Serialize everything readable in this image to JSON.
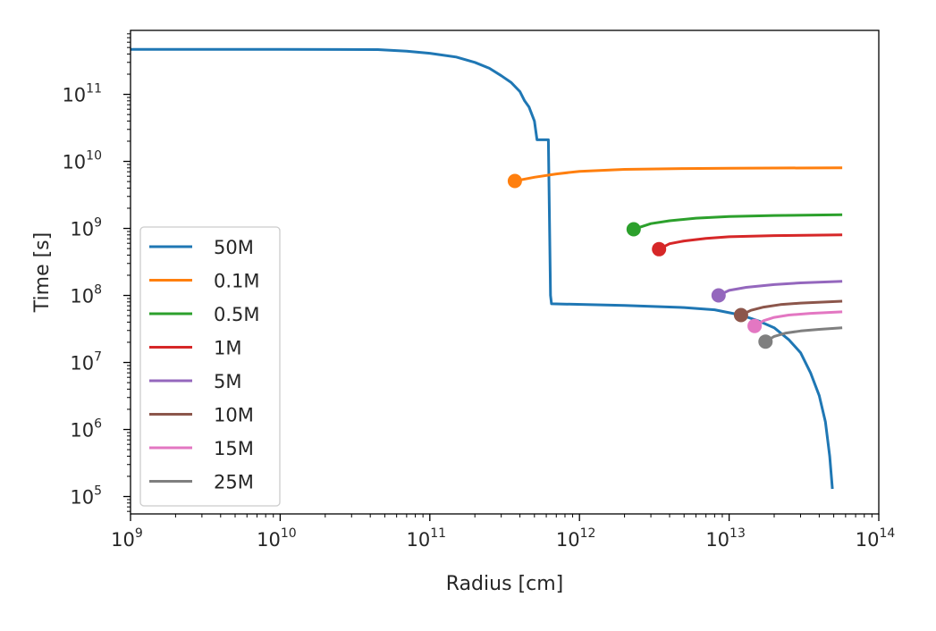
{
  "chart_data": {
    "type": "line",
    "title": "",
    "xlabel": "Radius [cm]",
    "ylabel": "Time [s]",
    "x_scale": "log",
    "y_scale": "log",
    "xlim": [
      1000000000.0,
      100000000000000.0
    ],
    "ylim": [
      55000.0,
      900000000000.0
    ],
    "grid": false,
    "legend_position": "lower-left",
    "x_ticks": [
      {
        "value": 1000000000.0,
        "base": "10",
        "exp": "9"
      },
      {
        "value": 10000000000.0,
        "base": "10",
        "exp": "10"
      },
      {
        "value": 100000000000.0,
        "base": "10",
        "exp": "11"
      },
      {
        "value": 1000000000000.0,
        "base": "10",
        "exp": "12"
      },
      {
        "value": 10000000000000.0,
        "base": "10",
        "exp": "13"
      },
      {
        "value": 100000000000000.0,
        "base": "10",
        "exp": "14"
      }
    ],
    "y_ticks": [
      {
        "value": 100000.0,
        "base": "10",
        "exp": "5"
      },
      {
        "value": 1000000.0,
        "base": "10",
        "exp": "6"
      },
      {
        "value": 10000000.0,
        "base": "10",
        "exp": "7"
      },
      {
        "value": 100000000.0,
        "base": "10",
        "exp": "8"
      },
      {
        "value": 1000000000.0,
        "base": "10",
        "exp": "9"
      },
      {
        "value": 10000000000.0,
        "base": "10",
        "exp": "10"
      },
      {
        "value": 100000000000.0,
        "base": "10",
        "exp": "11"
      }
    ],
    "series": [
      {
        "name": "50M",
        "color": "#1f77b4",
        "points": [
          [
            1000000000.0,
            470000000000.0
          ],
          [
            10000000000.0,
            470000000000.0
          ],
          [
            45000000000.0,
            465000000000.0
          ],
          [
            70000000000.0,
            440000000000.0
          ],
          [
            100000000000.0,
            410000000000.0
          ],
          [
            150000000000.0,
            360000000000.0
          ],
          [
            200000000000.0,
            300000000000.0
          ],
          [
            250000000000.0,
            245000000000.0
          ],
          [
            300000000000.0,
            190000000000.0
          ],
          [
            350000000000.0,
            150000000000.0
          ],
          [
            400000000000.0,
            110000000000.0
          ],
          [
            430000000000.0,
            80000000000.0
          ],
          [
            460000000000.0,
            65000000000.0
          ],
          [
            500000000000.0,
            40000000000.0
          ],
          [
            520000000000.0,
            21000000000.0
          ],
          [
            620000000000.0,
            21000000000.0
          ],
          [
            640000000000.0,
            100000000.0
          ],
          [
            650000000000.0,
            75000000.0
          ],
          [
            2000000000000.0,
            71000000.0
          ],
          [
            5000000000000.0,
            66000000.0
          ],
          [
            8000000000000.0,
            61000000.0
          ],
          [
            12000000000000.0,
            51000000.0
          ],
          [
            16000000000000.0,
            41000000.0
          ],
          [
            20000000000000.0,
            33000000.0
          ],
          [
            25000000000000.0,
            22000000.0
          ],
          [
            30000000000000.0,
            14000000.0
          ],
          [
            35000000000000.0,
            7000000.0
          ],
          [
            40000000000000.0,
            3200000.0
          ],
          [
            44000000000000.0,
            1300000.0
          ],
          [
            47000000000000.0,
            400000.0
          ],
          [
            49000000000000.0,
            130000.0
          ]
        ]
      },
      {
        "name": "0.1M",
        "color": "#ff7f0e",
        "start": [
          370000000000.0,
          5100000000.0
        ],
        "end": [
          57000000000000.0,
          8000000000.0
        ],
        "x": [
          370000000000.0,
          500000000000.0,
          700000000000.0,
          1000000000000.0,
          2000000000000.0,
          5000000000000.0,
          10000000000000.0,
          20000000000000.0,
          57000000000000.0
        ],
        "y": [
          5100000000.0,
          5800000000.0,
          6500000000.0,
          7100000000.0,
          7600000000.0,
          7800000000.0,
          7900000000.0,
          7950000000.0,
          8000000000.0
        ]
      },
      {
        "name": "0.5M",
        "color": "#2ca02c",
        "start": [
          2300000000000.0,
          970000000.0
        ],
        "end": [
          57000000000000.0,
          1600000000.0
        ],
        "x": [
          2300000000000.0,
          3000000000000.0,
          4000000000000.0,
          6000000000000.0,
          10000000000000.0,
          20000000000000.0,
          57000000000000.0
        ],
        "y": [
          970000000.0,
          1180000000.0,
          1300000000.0,
          1420000000.0,
          1500000000.0,
          1560000000.0,
          1600000000.0
        ]
      },
      {
        "name": "1M",
        "color": "#d62728",
        "start": [
          3400000000000.0,
          490000000.0
        ],
        "end": [
          57000000000000.0,
          800000000.0
        ],
        "x": [
          3400000000000.0,
          4000000000000.0,
          5000000000000.0,
          7000000000000.0,
          10000000000000.0,
          20000000000000.0,
          57000000000000.0
        ],
        "y": [
          490000000.0,
          590000000.0,
          650000000.0,
          710000000.0,
          750000000.0,
          780000000.0,
          800000000.0
        ]
      },
      {
        "name": "5M",
        "color": "#9467bd",
        "start": [
          8500000000000.0,
          100000000.0
        ],
        "end": [
          57000000000000.0,
          162000000.0
        ],
        "x": [
          8500000000000.0,
          10000000000000.0,
          13000000000000.0,
          20000000000000.0,
          30000000000000.0,
          57000000000000.0
        ],
        "y": [
          100000000.0,
          119000000.0,
          132000000.0,
          145000000.0,
          154000000.0,
          162000000.0
        ]
      },
      {
        "name": "10M",
        "color": "#8c564b",
        "start": [
          12000000000000.0,
          51000000.0
        ],
        "end": [
          57000000000000.0,
          82000000.0
        ],
        "x": [
          12000000000000.0,
          14000000000000.0,
          17000000000000.0,
          22000000000000.0,
          30000000000000.0,
          57000000000000.0
        ],
        "y": [
          51000000.0,
          60000000.0,
          67000000.0,
          73000000.0,
          77000000.0,
          82000000.0
        ]
      },
      {
        "name": "15M",
        "color": "#e377c2",
        "start": [
          14800000000000.0,
          35000000.0
        ],
        "end": [
          57000000000000.0,
          57000000.0
        ],
        "x": [
          14800000000000.0,
          17000000000000.0,
          20000000000000.0,
          25000000000000.0,
          35000000000000.0,
          57000000000000.0
        ],
        "y": [
          35000000.0,
          42000000.0,
          47000000.0,
          51000000.0,
          54000000.0,
          57000000.0
        ]
      },
      {
        "name": "25M",
        "color": "#7f7f7f",
        "start": [
          17500000000000.0,
          20500000.0
        ],
        "end": [
          57000000000000.0,
          33000000.0
        ],
        "x": [
          17500000000000.0,
          20000000000000.0,
          24000000000000.0,
          30000000000000.0,
          40000000000000.0,
          57000000000000.0
        ],
        "y": [
          20500000.0,
          24500000.0,
          27500000.0,
          29500000.0,
          31200000.0,
          33000000.0
        ]
      }
    ]
  }
}
